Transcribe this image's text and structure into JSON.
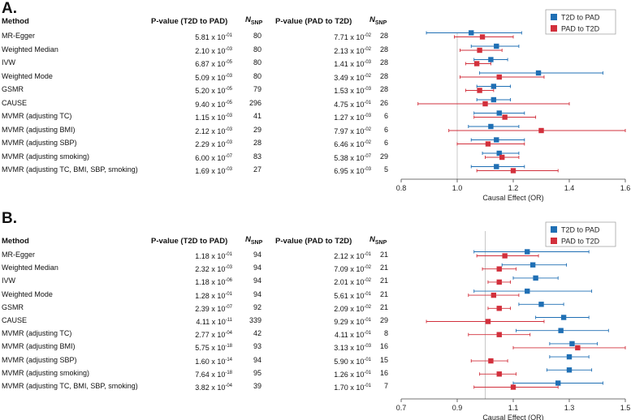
{
  "colors": {
    "t2d_to_pad": "#1f6fb4",
    "pad_to_t2d": "#d2303c",
    "axis": "#444444",
    "refline": "#bbbbbb"
  },
  "headers": {
    "method": "Method",
    "p1": "P-value (T2D to PAD)",
    "n_italic": "N",
    "n_sub": "SNP",
    "p2": "P-value (PAD to T2D)"
  },
  "panels": [
    {
      "letter": "A.",
      "rows": [
        {
          "method": "MR-Egger",
          "p1_mant": "5.81 x 10",
          "p1_exp": "-01",
          "n1": "80",
          "p2_mant": "7.71 x 10",
          "p2_exp": "-02",
          "n2": "28"
        },
        {
          "method": "Weighted Median",
          "p1_mant": "2.10 x 10",
          "p1_exp": "-03",
          "n1": "80",
          "p2_mant": "2.13 x 10",
          "p2_exp": "-02",
          "n2": "28"
        },
        {
          "method": "IVW",
          "p1_mant": "6.87 x 10",
          "p1_exp": "-05",
          "n1": "80",
          "p2_mant": "1.41 x 10",
          "p2_exp": "-03",
          "n2": "28"
        },
        {
          "method": "Weighted Mode",
          "p1_mant": "5.09 x 10",
          "p1_exp": "-03",
          "n1": "80",
          "p2_mant": "3.49 x 10",
          "p2_exp": "-02",
          "n2": "28"
        },
        {
          "method": "GSMR",
          "p1_mant": "5.20 x 10",
          "p1_exp": "-05",
          "n1": "79",
          "p2_mant": "1.53 x 10",
          "p2_exp": "-03",
          "n2": "28"
        },
        {
          "method": "CAUSE",
          "p1_mant": "9.40 x 10",
          "p1_exp": "-05",
          "n1": "296",
          "p2_mant": "4.75 x 10",
          "p2_exp": "-01",
          "n2": "26"
        },
        {
          "method": "MVMR (adjusting TC)",
          "p1_mant": "1.15 x 10",
          "p1_exp": "-03",
          "n1": "41",
          "p2_mant": "1.27 x 10",
          "p2_exp": "-03",
          "n2": "6"
        },
        {
          "method": "MVMR (adjusting BMI)",
          "p1_mant": "2.12 x 10",
          "p1_exp": "-03",
          "n1": "29",
          "p2_mant": "7.97 x 10",
          "p2_exp": "-02",
          "n2": "6"
        },
        {
          "method": "MVMR (adjusting SBP)",
          "p1_mant": "2.29 x 10",
          "p1_exp": "-03",
          "n1": "28",
          "p2_mant": "6.46 x 10",
          "p2_exp": "-02",
          "n2": "6"
        },
        {
          "method": "MVMR (adjusting smoking)",
          "p1_mant": "6.00 x 10",
          "p1_exp": "-07",
          "n1": "83",
          "p2_mant": "5.38 x 10",
          "p2_exp": "-07",
          "n2": "29"
        },
        {
          "method": "MVMR (adjusting TC, BMI, SBP, smoking)",
          "p1_mant": "1.69 x 10",
          "p1_exp": "-03",
          "n1": "27",
          "p2_mant": "6.95 x 10",
          "p2_exp": "-03",
          "n2": "5"
        }
      ]
    },
    {
      "letter": "B.",
      "rows": [
        {
          "method": "MR-Egger",
          "p1_mant": "1.18 x 10",
          "p1_exp": "-01",
          "n1": "94",
          "p2_mant": "2.12 x 10",
          "p2_exp": "-01",
          "n2": "21"
        },
        {
          "method": "Weighted Median",
          "p1_mant": "2.32 x 10",
          "p1_exp": "-03",
          "n1": "94",
          "p2_mant": "7.09 x 10",
          "p2_exp": "-02",
          "n2": "21"
        },
        {
          "method": "IVW",
          "p1_mant": "1.18 x 10",
          "p1_exp": "-06",
          "n1": "94",
          "p2_mant": "2.01 x 10",
          "p2_exp": "-02",
          "n2": "21"
        },
        {
          "method": "Weighted Mode",
          "p1_mant": "1.28 x 10",
          "p1_exp": "-01",
          "n1": "94",
          "p2_mant": "5.61 x 10",
          "p2_exp": "-01",
          "n2": "21"
        },
        {
          "method": "GSMR",
          "p1_mant": "2.39 x 10",
          "p1_exp": "-07",
          "n1": "92",
          "p2_mant": "2.09 x 10",
          "p2_exp": "-02",
          "n2": "21"
        },
        {
          "method": "CAUSE",
          "p1_mant": "4.11 x 10",
          "p1_exp": "-11",
          "n1": "339",
          "p2_mant": "9.29 x 10",
          "p2_exp": "-01",
          "n2": "29"
        },
        {
          "method": "MVMR (adjusting TC)",
          "p1_mant": "2.77 x 10",
          "p1_exp": "-04",
          "n1": "42",
          "p2_mant": "4.11 x 10",
          "p2_exp": "-01",
          "n2": "8"
        },
        {
          "method": "MVMR (adjusting BMI)",
          "p1_mant": "5.75 x 10",
          "p1_exp": "-18",
          "n1": "93",
          "p2_mant": "3.13 x 10",
          "p2_exp": "-03",
          "n2": "16"
        },
        {
          "method": "MVMR (adjusting SBP)",
          "p1_mant": "1.60 x 10",
          "p1_exp": "-14",
          "n1": "94",
          "p2_mant": "5.90 x 10",
          "p2_exp": "-01",
          "n2": "15"
        },
        {
          "method": "MVMR (adjusting smoking)",
          "p1_mant": "7.64 x 10",
          "p1_exp": "-18",
          "n1": "95",
          "p2_mant": "1.26 x 10",
          "p2_exp": "-01",
          "n2": "16"
        },
        {
          "method": "MVMR (adjusting TC, BMI, SBP, smoking)",
          "p1_mant": "3.82 x 10",
          "p1_exp": "-04",
          "n1": "39",
          "p2_mant": "1.70 x 10",
          "p2_exp": "-01",
          "n2": "7"
        }
      ]
    }
  ],
  "chart_data": [
    {
      "type": "scatter",
      "subtype": "forest",
      "panel": "A.",
      "xlabel": "Causal Effect (OR)",
      "xlim": [
        0.8,
        1.6
      ],
      "xticks": [
        "0.8",
        "1.0",
        "1.2",
        "1.4",
        "1.6"
      ],
      "reference_line": 1.0,
      "legend_position": "top-right",
      "categories": [
        "MR-Egger",
        "Weighted Median",
        "IVW",
        "Weighted Mode",
        "GSMR",
        "CAUSE",
        "MVMR (adjusting TC)",
        "MVMR (adjusting BMI)",
        "MVMR (adjusting SBP)",
        "MVMR (adjusting smoking)",
        "MVMR (adjusting TC, BMI, SBP, smoking)"
      ],
      "series": [
        {
          "name": "T2D to PAD",
          "values": [
            1.05,
            1.14,
            1.12,
            1.29,
            1.13,
            1.13,
            1.15,
            1.12,
            1.14,
            1.15,
            1.14
          ],
          "lower": [
            0.89,
            1.05,
            1.06,
            1.08,
            1.07,
            1.07,
            1.06,
            1.04,
            1.05,
            1.09,
            1.05
          ],
          "upper": [
            1.23,
            1.22,
            1.18,
            1.52,
            1.19,
            1.19,
            1.24,
            1.22,
            1.24,
            1.22,
            1.24
          ]
        },
        {
          "name": "PAD to T2D",
          "values": [
            1.09,
            1.08,
            1.07,
            1.15,
            1.08,
            1.1,
            1.17,
            1.3,
            1.11,
            1.16,
            1.2
          ],
          "lower": [
            0.99,
            1.01,
            1.03,
            1.01,
            1.03,
            0.86,
            1.06,
            0.97,
            1.0,
            1.1,
            1.07
          ],
          "upper": [
            1.2,
            1.16,
            1.12,
            1.31,
            1.13,
            1.4,
            1.28,
            1.6,
            1.24,
            1.22,
            1.36
          ]
        }
      ]
    },
    {
      "type": "scatter",
      "subtype": "forest",
      "panel": "B.",
      "xlabel": "Causal Effect (OR)",
      "xlim": [
        0.7,
        1.5
      ],
      "xticks": [
        "0.7",
        "0.9",
        "1.1",
        "1.3",
        "1.5"
      ],
      "reference_line": 1.0,
      "legend_position": "top-right",
      "categories": [
        "MR-Egger",
        "Weighted Median",
        "IVW",
        "Weighted Mode",
        "GSMR",
        "CAUSE",
        "MVMR (adjusting TC)",
        "MVMR (adjusting BMI)",
        "MVMR (adjusting SBP)",
        "MVMR (adjusting smoking)",
        "MVMR (adjusting TC, BMI, SBP, smoking)"
      ],
      "series": [
        {
          "name": "T2D to PAD",
          "values": [
            1.15,
            1.17,
            1.18,
            1.15,
            1.2,
            1.28,
            1.27,
            1.31,
            1.3,
            1.3,
            1.26
          ],
          "lower": [
            0.96,
            1.06,
            1.1,
            0.96,
            1.12,
            1.18,
            1.11,
            1.23,
            1.23,
            1.22,
            1.1
          ],
          "upper": [
            1.37,
            1.29,
            1.26,
            1.38,
            1.28,
            1.37,
            1.44,
            1.4,
            1.37,
            1.38,
            1.42
          ]
        },
        {
          "name": "PAD to T2D",
          "values": [
            1.07,
            1.05,
            1.05,
            1.03,
            1.05,
            1.01,
            1.05,
            1.33,
            1.02,
            1.05,
            1.1
          ],
          "lower": [
            0.97,
            0.99,
            1.01,
            0.94,
            1.01,
            0.79,
            0.94,
            1.1,
            0.95,
            0.98,
            0.96
          ],
          "upper": [
            1.19,
            1.11,
            1.09,
            1.12,
            1.09,
            1.21,
            1.16,
            1.5,
            1.08,
            1.11,
            1.26
          ]
        }
      ]
    }
  ]
}
